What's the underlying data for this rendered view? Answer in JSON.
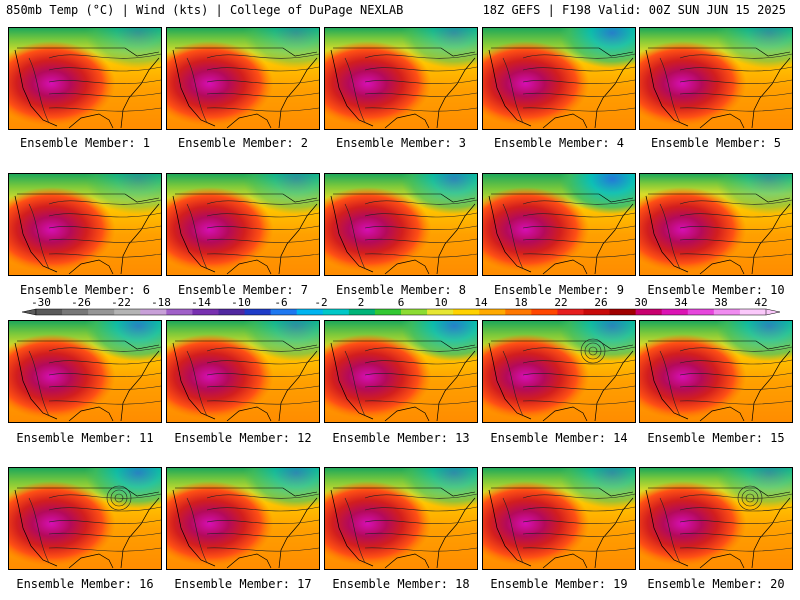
{
  "header": {
    "left": "850mb Temp (°C) | Wind (kts) | College of DuPage NEXLAB",
    "right": "18Z GEFS | F198 Valid: 00Z SUN JUN 15 2025"
  },
  "caption_prefix": "Ensemble Member: ",
  "members": [
    {
      "label": "Ensemble Member: 1",
      "cold_north": 0.55,
      "blue_ne": 0.1,
      "low_center": false
    },
    {
      "label": "Ensemble Member: 2",
      "cold_north": 0.55,
      "blue_ne": 0.1,
      "low_center": false
    },
    {
      "label": "Ensemble Member: 3",
      "cold_north": 0.45,
      "blue_ne": 0.2,
      "low_center": false
    },
    {
      "label": "Ensemble Member: 4",
      "cold_north": 0.75,
      "blue_ne": 0.45,
      "low_center": false
    },
    {
      "label": "Ensemble Member: 5",
      "cold_north": 0.5,
      "blue_ne": 0.15,
      "low_center": false
    },
    {
      "label": "Ensemble Member: 6",
      "cold_north": 0.6,
      "blue_ne": 0.05,
      "low_center": false
    },
    {
      "label": "Ensemble Member: 7",
      "cold_north": 0.55,
      "blue_ne": 0.15,
      "low_center": false
    },
    {
      "label": "Ensemble Member: 8",
      "cold_north": 0.55,
      "blue_ne": 0.35,
      "low_center": false
    },
    {
      "label": "Ensemble Member: 9",
      "cold_north": 0.8,
      "blue_ne": 0.55,
      "low_center": false
    },
    {
      "label": "Ensemble Member: 10",
      "cold_north": 0.35,
      "blue_ne": 0.1,
      "low_center": false
    },
    {
      "label": "Ensemble Member: 11",
      "cold_north": 0.6,
      "blue_ne": 0.4,
      "low_center": false
    },
    {
      "label": "Ensemble Member: 12",
      "cold_north": 0.55,
      "blue_ne": 0.2,
      "low_center": false
    },
    {
      "label": "Ensemble Member: 13",
      "cold_north": 0.65,
      "blue_ne": 0.45,
      "low_center": false
    },
    {
      "label": "Ensemble Member: 14",
      "cold_north": 0.7,
      "blue_ne": 0.35,
      "low_center": true
    },
    {
      "label": "Ensemble Member: 15",
      "cold_north": 0.55,
      "blue_ne": 0.35,
      "low_center": false
    },
    {
      "label": "Ensemble Member: 16",
      "cold_north": 0.7,
      "blue_ne": 0.4,
      "low_center": true
    },
    {
      "label": "Ensemble Member: 17",
      "cold_north": 0.55,
      "blue_ne": 0.3,
      "low_center": false
    },
    {
      "label": "Ensemble Member: 18",
      "cold_north": 0.6,
      "blue_ne": 0.25,
      "low_center": false
    },
    {
      "label": "Ensemble Member: 19",
      "cold_north": 0.55,
      "blue_ne": 0.2,
      "low_center": false
    },
    {
      "label": "Ensemble Member: 20",
      "cold_north": 0.45,
      "blue_ne": 0.15,
      "low_center": true
    }
  ],
  "colorbar": {
    "ticks": [
      "-30",
      "-26",
      "-22",
      "-18",
      "-14",
      "-10",
      "-6",
      "-2",
      "2",
      "6",
      "10",
      "14",
      "18",
      "22",
      "26",
      "30",
      "34",
      "38",
      "42"
    ],
    "colors": [
      "#5a5a5a",
      "#787878",
      "#969696",
      "#b4b4b4",
      "#c8a0d8",
      "#a060c8",
      "#7830b0",
      "#5028a0",
      "#1e3cc8",
      "#1e78f0",
      "#00b4f0",
      "#00c8c8",
      "#00b478",
      "#32c832",
      "#8cdc32",
      "#e6e632",
      "#ffd200",
      "#ffaa00",
      "#ff7800",
      "#ff4600",
      "#e61e1e",
      "#c80a0a",
      "#a00000",
      "#c8006e",
      "#dc14b4",
      "#e646dc",
      "#f08cf0",
      "#fac8fa"
    ]
  }
}
